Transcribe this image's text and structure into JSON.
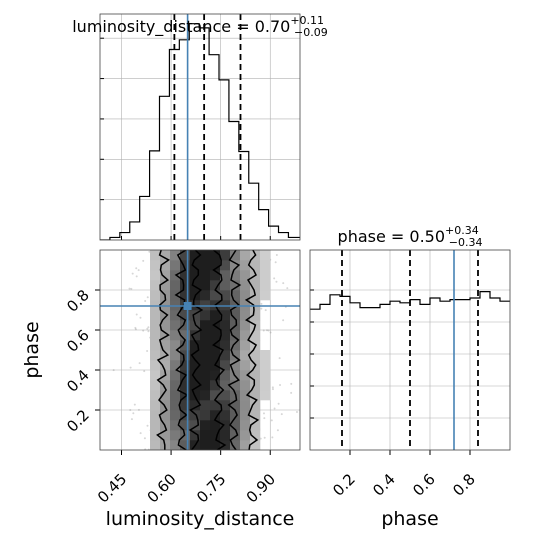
{
  "chart_data": {
    "type": "corner",
    "parameters": [
      "luminosity_distance",
      "phase"
    ],
    "titles": {
      "luminosity_distance": {
        "prefix": "luminosity_distance = ",
        "value": "0.70",
        "plus": "+0.11",
        "minus": "−0.09"
      },
      "phase": {
        "prefix": "phase = ",
        "value": "0.50",
        "plus": "+0.34",
        "minus": "−0.34"
      }
    },
    "axis_labels": {
      "x_left": "luminosity_distance",
      "x_right": "phase",
      "y_left": "phase"
    },
    "ranges": {
      "luminosity_distance": [
        0.385,
        0.99
      ],
      "phase": [
        0.0,
        1.0
      ]
    },
    "ticks": {
      "luminosity_distance": {
        "values": [
          0.45,
          0.6,
          0.75,
          0.9
        ],
        "labels": [
          "0.45",
          "0.60",
          "0.75",
          "0.90"
        ]
      },
      "phase": {
        "values": [
          0.2,
          0.4,
          0.6,
          0.8
        ],
        "labels": [
          "0.2",
          "0.4",
          "0.6",
          "0.8"
        ]
      }
    },
    "truths": {
      "luminosity_distance": 0.65,
      "phase": 0.72
    },
    "quantiles": {
      "luminosity_distance": [
        0.61,
        0.7,
        0.81
      ],
      "phase": [
        0.16,
        0.5,
        0.84
      ]
    },
    "histogram_luminosity_distance": {
      "bin_edges": [
        0.385,
        0.415,
        0.445,
        0.475,
        0.505,
        0.535,
        0.565,
        0.595,
        0.625,
        0.655,
        0.685,
        0.715,
        0.745,
        0.775,
        0.805,
        0.835,
        0.865,
        0.895,
        0.925,
        0.955,
        0.99
      ],
      "counts": [
        0,
        0.8,
        2.3,
        5.6,
        13.5,
        27.6,
        44.5,
        59.0,
        62.0,
        67.0,
        65.7,
        57.4,
        49.6,
        36.7,
        27.4,
        17.6,
        9.4,
        4.3,
        2.3,
        0.8
      ]
    },
    "histogram_phase": {
      "bin_edges": [
        0.0,
        0.05,
        0.1,
        0.15,
        0.2,
        0.25,
        0.3,
        0.35,
        0.4,
        0.45,
        0.5,
        0.55,
        0.6,
        0.65,
        0.7,
        0.75,
        0.8,
        0.85,
        0.9,
        0.95,
        1.0
      ],
      "counts": [
        88,
        91,
        97,
        96,
        92,
        89,
        89,
        91,
        93,
        92,
        94,
        91,
        95,
        93,
        94,
        94,
        95,
        99,
        95,
        93
      ]
    },
    "grid": true,
    "colors": {
      "truth": "#4682b4",
      "line": "#000000",
      "grid": "#b0b0b0"
    }
  }
}
